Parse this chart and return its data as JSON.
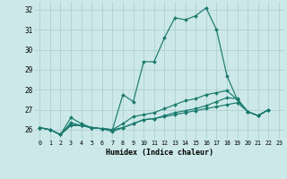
{
  "xlabel": "Humidex (Indice chaleur)",
  "ylabel": "",
  "background_color": "#cce8e8",
  "grid_color": "#aacccc",
  "line_color": "#1a7a6e",
  "xlim": [
    -0.5,
    23.5
  ],
  "ylim": [
    25.5,
    32.4
  ],
  "yticks": [
    26,
    27,
    28,
    29,
    30,
    31,
    32
  ],
  "xticks": [
    0,
    1,
    2,
    3,
    4,
    5,
    6,
    7,
    8,
    9,
    10,
    11,
    12,
    13,
    14,
    15,
    16,
    17,
    18,
    19,
    20,
    21,
    22,
    23
  ],
  "lines": [
    {
      "x": [
        0,
        1,
        2,
        3,
        4,
        5,
        6,
        7,
        8,
        9,
        10,
        11,
        12,
        13,
        14,
        15,
        16,
        17,
        18,
        19,
        20,
        21,
        22
      ],
      "y": [
        26.1,
        26.0,
        25.75,
        26.6,
        26.3,
        26.1,
        26.05,
        26.0,
        27.75,
        27.4,
        29.4,
        29.4,
        30.6,
        31.6,
        31.5,
        31.7,
        32.1,
        31.0,
        28.7,
        27.5,
        26.9,
        26.7,
        27.0
      ]
    },
    {
      "x": [
        0,
        1,
        2,
        3,
        4,
        5,
        6,
        7,
        8,
        9,
        10,
        11,
        12,
        13,
        14,
        15,
        16,
        17,
        18,
        19,
        20,
        21,
        22
      ],
      "y": [
        26.1,
        26.0,
        25.75,
        26.35,
        26.2,
        26.1,
        26.05,
        26.0,
        26.1,
        26.3,
        26.5,
        26.55,
        26.65,
        26.75,
        26.85,
        26.95,
        27.05,
        27.15,
        27.25,
        27.35,
        26.9,
        26.7,
        27.0
      ]
    },
    {
      "x": [
        0,
        1,
        2,
        3,
        4,
        5,
        6,
        7,
        8,
        9,
        10,
        11,
        12,
        13,
        14,
        15,
        16,
        17,
        18,
        19,
        20,
        21,
        22
      ],
      "y": [
        26.1,
        26.0,
        25.75,
        26.25,
        26.2,
        26.1,
        26.05,
        25.9,
        26.1,
        26.3,
        26.5,
        26.55,
        26.7,
        26.85,
        26.95,
        27.05,
        27.2,
        27.4,
        27.6,
        27.55,
        26.9,
        26.7,
        27.0
      ]
    },
    {
      "x": [
        0,
        1,
        2,
        3,
        4,
        5,
        6,
        7,
        8,
        9,
        10,
        11,
        12,
        13,
        14,
        15,
        16,
        17,
        18,
        19,
        20,
        21,
        22
      ],
      "y": [
        26.1,
        26.0,
        25.75,
        26.2,
        26.2,
        26.1,
        26.05,
        26.0,
        26.3,
        26.65,
        26.75,
        26.85,
        27.05,
        27.25,
        27.45,
        27.55,
        27.75,
        27.85,
        27.95,
        27.5,
        26.9,
        26.7,
        27.0
      ]
    }
  ]
}
